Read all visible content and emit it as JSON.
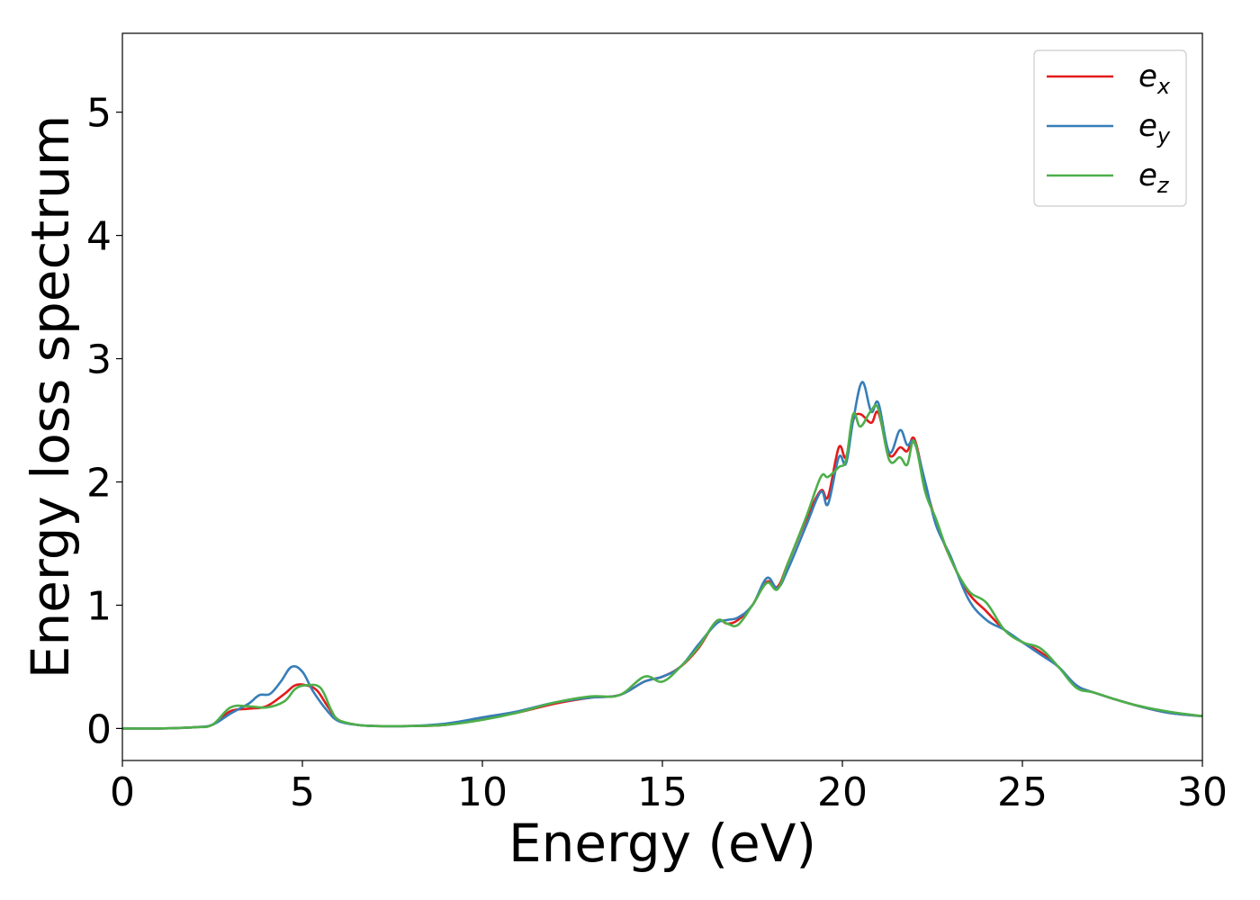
{
  "chart_data": {
    "type": "line",
    "xlabel": "Energy (eV)",
    "ylabel": "Energy loss spectrum",
    "xlim": [
      0,
      30
    ],
    "ylim": [
      -0.26,
      5.64
    ],
    "xticks": [
      0,
      5,
      10,
      15,
      20,
      25,
      30
    ],
    "yticks": [
      0,
      1,
      2,
      3,
      4,
      5
    ],
    "grid": false,
    "legend_position": "top-right",
    "series": [
      {
        "name": "e_x",
        "label_base": "e",
        "label_sub": "x",
        "color": "#e41a1c",
        "points": [
          [
            0,
            0
          ],
          [
            1,
            0
          ],
          [
            2,
            0.01
          ],
          [
            2.5,
            0.03
          ],
          [
            3,
            0.14
          ],
          [
            3.5,
            0.16
          ],
          [
            4,
            0.18
          ],
          [
            4.5,
            0.28
          ],
          [
            4.8,
            0.35
          ],
          [
            5.1,
            0.35
          ],
          [
            5.4,
            0.31
          ],
          [
            5.7,
            0.18
          ],
          [
            6,
            0.07
          ],
          [
            6.5,
            0.03
          ],
          [
            7,
            0.02
          ],
          [
            8,
            0.02
          ],
          [
            9,
            0.03
          ],
          [
            10,
            0.08
          ],
          [
            11,
            0.13
          ],
          [
            12,
            0.2
          ],
          [
            13,
            0.25
          ],
          [
            13.8,
            0.27
          ],
          [
            14.5,
            0.38
          ],
          [
            15,
            0.42
          ],
          [
            15.5,
            0.5
          ],
          [
            16,
            0.65
          ],
          [
            16.5,
            0.87
          ],
          [
            16.8,
            0.85
          ],
          [
            17.1,
            0.88
          ],
          [
            17.5,
            1.0
          ],
          [
            17.9,
            1.19
          ],
          [
            18.2,
            1.15
          ],
          [
            18.5,
            1.35
          ],
          [
            19,
            1.7
          ],
          [
            19.4,
            1.93
          ],
          [
            19.6,
            1.88
          ],
          [
            19.9,
            2.28
          ],
          [
            20.1,
            2.2
          ],
          [
            20.3,
            2.5
          ],
          [
            20.5,
            2.55
          ],
          [
            20.8,
            2.48
          ],
          [
            21,
            2.56
          ],
          [
            21.3,
            2.22
          ],
          [
            21.6,
            2.28
          ],
          [
            21.8,
            2.25
          ],
          [
            22,
            2.35
          ],
          [
            22.3,
            1.98
          ],
          [
            22.6,
            1.68
          ],
          [
            23,
            1.38
          ],
          [
            23.5,
            1.1
          ],
          [
            24,
            0.95
          ],
          [
            24.5,
            0.8
          ],
          [
            25,
            0.7
          ],
          [
            25.5,
            0.62
          ],
          [
            26,
            0.5
          ],
          [
            26.5,
            0.35
          ],
          [
            27,
            0.29
          ],
          [
            28,
            0.2
          ],
          [
            29,
            0.13
          ],
          [
            30,
            0.1
          ]
        ]
      },
      {
        "name": "e_y",
        "label_base": "e",
        "label_sub": "y",
        "color": "#377eb8",
        "points": [
          [
            0,
            0
          ],
          [
            1,
            0
          ],
          [
            2,
            0.01
          ],
          [
            2.5,
            0.03
          ],
          [
            3,
            0.12
          ],
          [
            3.5,
            0.2
          ],
          [
            3.8,
            0.27
          ],
          [
            4.1,
            0.28
          ],
          [
            4.4,
            0.38
          ],
          [
            4.7,
            0.5
          ],
          [
            5,
            0.46
          ],
          [
            5.3,
            0.3
          ],
          [
            5.7,
            0.14
          ],
          [
            6,
            0.06
          ],
          [
            6.5,
            0.03
          ],
          [
            7,
            0.02
          ],
          [
            8,
            0.02
          ],
          [
            9,
            0.04
          ],
          [
            10,
            0.09
          ],
          [
            11,
            0.14
          ],
          [
            12,
            0.21
          ],
          [
            13,
            0.25
          ],
          [
            13.8,
            0.27
          ],
          [
            14.5,
            0.38
          ],
          [
            15,
            0.42
          ],
          [
            15.5,
            0.5
          ],
          [
            16,
            0.68
          ],
          [
            16.5,
            0.85
          ],
          [
            16.8,
            0.88
          ],
          [
            17.1,
            0.9
          ],
          [
            17.5,
            1.0
          ],
          [
            17.9,
            1.22
          ],
          [
            18.2,
            1.14
          ],
          [
            18.5,
            1.3
          ],
          [
            19,
            1.65
          ],
          [
            19.4,
            1.92
          ],
          [
            19.6,
            1.82
          ],
          [
            19.9,
            2.2
          ],
          [
            20.1,
            2.15
          ],
          [
            20.3,
            2.5
          ],
          [
            20.55,
            2.81
          ],
          [
            20.8,
            2.57
          ],
          [
            21,
            2.64
          ],
          [
            21.3,
            2.24
          ],
          [
            21.6,
            2.42
          ],
          [
            21.8,
            2.3
          ],
          [
            22,
            2.32
          ],
          [
            22.3,
            2.0
          ],
          [
            22.6,
            1.65
          ],
          [
            23,
            1.4
          ],
          [
            23.5,
            1.05
          ],
          [
            24,
            0.88
          ],
          [
            24.5,
            0.8
          ],
          [
            25,
            0.7
          ],
          [
            25.5,
            0.6
          ],
          [
            26,
            0.5
          ],
          [
            26.5,
            0.35
          ],
          [
            27,
            0.29
          ],
          [
            28,
            0.2
          ],
          [
            29,
            0.13
          ],
          [
            30,
            0.1
          ]
        ]
      },
      {
        "name": "e_z",
        "label_base": "e",
        "label_sub": "z",
        "color": "#4daf4a",
        "points": [
          [
            0,
            0
          ],
          [
            1,
            0
          ],
          [
            2,
            0.01
          ],
          [
            2.5,
            0.03
          ],
          [
            3,
            0.17
          ],
          [
            3.5,
            0.18
          ],
          [
            4,
            0.17
          ],
          [
            4.5,
            0.22
          ],
          [
            4.8,
            0.32
          ],
          [
            5.1,
            0.35
          ],
          [
            5.5,
            0.33
          ],
          [
            5.8,
            0.15
          ],
          [
            6,
            0.07
          ],
          [
            6.5,
            0.03
          ],
          [
            7,
            0.02
          ],
          [
            8,
            0.02
          ],
          [
            9,
            0.03
          ],
          [
            10,
            0.07
          ],
          [
            11,
            0.13
          ],
          [
            12,
            0.21
          ],
          [
            13,
            0.26
          ],
          [
            13.8,
            0.27
          ],
          [
            14.5,
            0.42
          ],
          [
            15,
            0.38
          ],
          [
            15.5,
            0.5
          ],
          [
            16,
            0.66
          ],
          [
            16.5,
            0.87
          ],
          [
            16.8,
            0.85
          ],
          [
            17.1,
            0.84
          ],
          [
            17.5,
            1.0
          ],
          [
            17.9,
            1.18
          ],
          [
            18.2,
            1.13
          ],
          [
            18.5,
            1.35
          ],
          [
            19,
            1.72
          ],
          [
            19.4,
            2.04
          ],
          [
            19.6,
            2.04
          ],
          [
            19.9,
            2.12
          ],
          [
            20.1,
            2.18
          ],
          [
            20.3,
            2.55
          ],
          [
            20.5,
            2.45
          ],
          [
            20.8,
            2.58
          ],
          [
            21,
            2.59
          ],
          [
            21.3,
            2.18
          ],
          [
            21.6,
            2.2
          ],
          [
            21.8,
            2.14
          ],
          [
            22,
            2.33
          ],
          [
            22.3,
            1.92
          ],
          [
            22.6,
            1.7
          ],
          [
            23,
            1.38
          ],
          [
            23.5,
            1.12
          ],
          [
            24,
            1.02
          ],
          [
            24.5,
            0.8
          ],
          [
            25,
            0.7
          ],
          [
            25.5,
            0.65
          ],
          [
            26,
            0.5
          ],
          [
            26.5,
            0.33
          ],
          [
            27,
            0.29
          ],
          [
            28,
            0.2
          ],
          [
            29,
            0.14
          ],
          [
            30,
            0.1
          ]
        ]
      }
    ]
  }
}
